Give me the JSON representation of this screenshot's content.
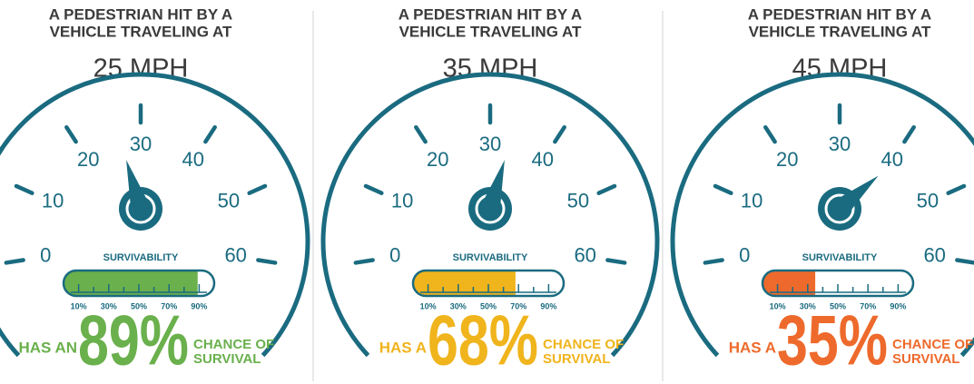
{
  "chart_data": [
    {
      "type": "gauge",
      "title_lines": [
        "A PEDESTRIAN HIT BY A",
        "VEHICLE TRAVELING AT"
      ],
      "subtitle": "25 MPH",
      "speed": 25,
      "dial_lim": [
        0,
        60
      ],
      "dial_ticks": [
        0,
        10,
        20,
        30,
        40,
        50,
        60
      ],
      "bar_title": "SURVIVABILITY",
      "bar_xlim": [
        0,
        100
      ],
      "bar_ticks": [
        {
          "value": 10,
          "label": "10%"
        },
        {
          "value": 30,
          "label": "30%"
        },
        {
          "value": 50,
          "label": "50%"
        },
        {
          "value": 70,
          "label": "70%"
        },
        {
          "value": 90,
          "label": "90%"
        }
      ],
      "bar_minor_ticks": [
        20,
        40,
        60,
        80
      ],
      "value": 89,
      "value_label": "89%",
      "prefix": "HAS AN",
      "suffix_lines": [
        "CHANCE OF",
        "SURVIVAL"
      ],
      "color": "#6ab04c"
    },
    {
      "type": "gauge",
      "title_lines": [
        "A PEDESTRIAN HIT BY A",
        "VEHICLE TRAVELING AT"
      ],
      "subtitle": "35 MPH",
      "speed": 35,
      "dial_lim": [
        0,
        60
      ],
      "dial_ticks": [
        0,
        10,
        20,
        30,
        40,
        50,
        60
      ],
      "bar_title": "SURVIVABILITY",
      "bar_xlim": [
        0,
        100
      ],
      "bar_ticks": [
        {
          "value": 10,
          "label": "10%"
        },
        {
          "value": 30,
          "label": "30%"
        },
        {
          "value": 50,
          "label": "50%"
        },
        {
          "value": 70,
          "label": "70%"
        },
        {
          "value": 90,
          "label": "90%"
        }
      ],
      "bar_minor_ticks": [
        20,
        40,
        60,
        80
      ],
      "value": 68,
      "value_label": "68%",
      "prefix": "HAS A",
      "suffix_lines": [
        "CHANCE OF",
        "SURVIVAL"
      ],
      "color": "#f0b41c"
    },
    {
      "type": "gauge",
      "title_lines": [
        "A PEDESTRIAN HIT BY A",
        "VEHICLE TRAVELING AT"
      ],
      "subtitle": "45 MPH",
      "speed": 45,
      "dial_lim": [
        0,
        60
      ],
      "dial_ticks": [
        0,
        10,
        20,
        30,
        40,
        50,
        60
      ],
      "bar_title": "SURVIVABILITY",
      "bar_xlim": [
        0,
        100
      ],
      "bar_ticks": [
        {
          "value": 10,
          "label": "10%"
        },
        {
          "value": 30,
          "label": "30%"
        },
        {
          "value": 50,
          "label": "50%"
        },
        {
          "value": 70,
          "label": "70%"
        },
        {
          "value": 90,
          "label": "90%"
        }
      ],
      "bar_minor_ticks": [
        20,
        40,
        60,
        80
      ],
      "value": 35,
      "value_label": "35%",
      "prefix": "HAS A",
      "suffix_lines": [
        "CHANCE OF",
        "SURVIVAL"
      ],
      "color": "#ee6a2c"
    }
  ]
}
